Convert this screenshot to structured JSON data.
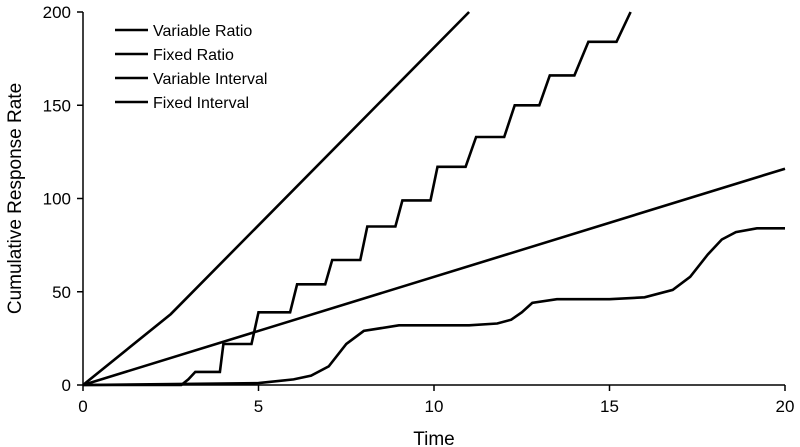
{
  "chart_data": {
    "type": "line",
    "title": "",
    "xlabel": "Time",
    "ylabel": "Cumulative Response Rate",
    "xlim": [
      0,
      20
    ],
    "ylim": [
      0,
      200
    ],
    "xticks": [
      0,
      5,
      10,
      15,
      20
    ],
    "yticks": [
      0,
      50,
      100,
      150,
      200
    ],
    "grid": false,
    "legend": "top-left",
    "line_color": "#000000",
    "series": [
      {
        "name": "Variable Ratio",
        "x": [
          0,
          2.5,
          11
        ],
        "y": [
          0,
          38,
          200
        ]
      },
      {
        "name": "Fixed Ratio",
        "x": [
          0,
          2.8,
          2.8,
          3.0,
          3.0,
          3.2,
          3.2,
          3.9,
          3.9,
          4.0,
          4.0,
          4.8,
          4.8,
          5.0,
          5.0,
          5.9,
          5.9,
          6.1,
          6.1,
          6.9,
          6.9,
          7.1,
          7.1,
          7.9,
          7.9,
          8.1,
          8.1,
          8.9,
          8.9,
          9.1,
          9.1,
          9.9,
          9.9,
          10.1,
          10.1,
          10.9,
          10.9,
          11.2,
          11.2,
          12.0,
          12.0,
          12.3,
          12.3,
          13.0,
          13.0,
          13.3,
          13.3,
          14.0,
          14.0,
          14.4,
          14.4,
          15.2,
          15.2,
          15.6
        ],
        "y": [
          0,
          0,
          0,
          3,
          3,
          7,
          7,
          7,
          7,
          22,
          22,
          22,
          22,
          39,
          39,
          39,
          39,
          54,
          54,
          54,
          54,
          67,
          67,
          67,
          67,
          85,
          85,
          85,
          85,
          99,
          99,
          99,
          99,
          117,
          117,
          117,
          117,
          133,
          133,
          133,
          133,
          150,
          150,
          150,
          150,
          166,
          166,
          166,
          166,
          184,
          184,
          184,
          184,
          200
        ]
      },
      {
        "name": "Variable Interval",
        "x": [
          0,
          20
        ],
        "y": [
          0,
          116
        ]
      },
      {
        "name": "Fixed Interval",
        "x": [
          0,
          5,
          6,
          6.5,
          7,
          7.5,
          8,
          9,
          10,
          11,
          11.8,
          12.2,
          12.5,
          12.8,
          13.5,
          14,
          15,
          16,
          16.8,
          17.3,
          17.8,
          18.2,
          18.6,
          19.2,
          20
        ],
        "y": [
          0,
          1,
          3,
          5,
          10,
          22,
          29,
          32,
          32,
          32,
          33,
          35,
          39,
          44,
          46,
          46,
          46,
          47,
          51,
          58,
          70,
          78,
          82,
          84,
          84
        ]
      }
    ]
  }
}
